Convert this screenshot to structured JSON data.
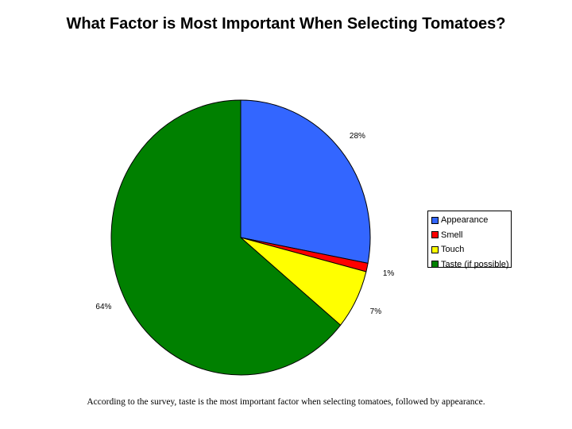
{
  "chart_data": {
    "type": "pie",
    "title": "What Factor is Most Important When Selecting Tomatoes?",
    "slices": [
      {
        "label": "Appearance",
        "value": 28,
        "value_label": "28%",
        "color": "#3366ff"
      },
      {
        "label": "Smell",
        "value": 1,
        "value_label": "1%",
        "color": "#ff0000"
      },
      {
        "label": "Touch",
        "value": 7,
        "value_label": "7%",
        "color": "#ffff00"
      },
      {
        "label": "Taste (if possible)",
        "value": 64,
        "value_label": "64%",
        "color": "#008000"
      }
    ],
    "legend_position": "right"
  },
  "caption": "According to the survey, taste is the most important factor when selecting tomatoes, followed by appearance."
}
